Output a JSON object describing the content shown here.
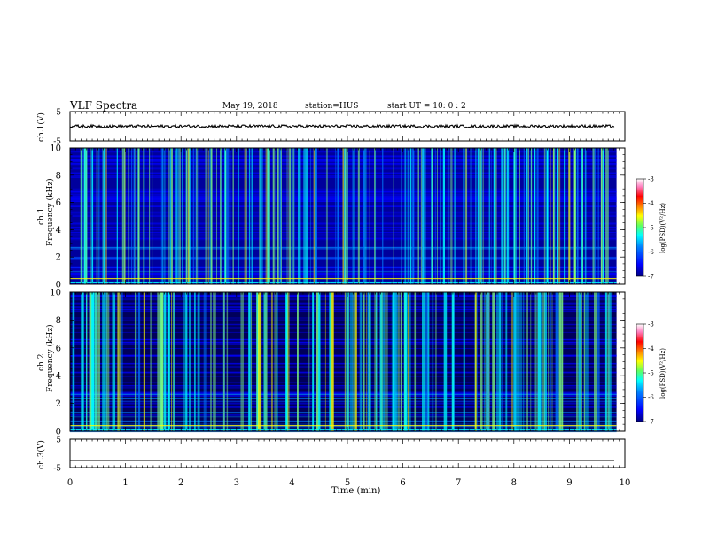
{
  "header": {
    "title": "VLF Spectra",
    "date": "May 19, 2018",
    "station": "station=HUS",
    "start": "start  UT  =   10: 0  : 2"
  },
  "colors": {
    "background": "#ffffff",
    "axes": "#000000",
    "colormap": [
      "#00007f",
      "#0000ff",
      "#0080ff",
      "#00ffff",
      "#80ff80",
      "#ffff00",
      "#ff8000",
      "#ff0000",
      "#ff80c0",
      "#ffffff"
    ]
  },
  "chart_data": [
    {
      "type": "line",
      "id": "ch1-waveform",
      "ylabel": "ch.1(V)",
      "ylim": [
        -5,
        5
      ],
      "yticks": [
        "5",
        "-5"
      ],
      "xlim": [
        0,
        10
      ],
      "description_values": {
        "offset_v": 0,
        "amplitude_v": 0.5
      }
    },
    {
      "type": "heatmap",
      "id": "ch1-spectrogram",
      "ylabel_line1": "ch.1",
      "ylabel_line2": "Frequency (kHz)",
      "ylim": [
        0,
        10
      ],
      "yticks": [
        "0",
        "2",
        "4",
        "6",
        "8",
        "10"
      ],
      "xlim": [
        0,
        9.85
      ],
      "colorbar": {
        "label": "log(PSD)(V²/Hz)",
        "range": [
          -7,
          -3
        ],
        "ticks": [
          "-3",
          "-4",
          "-5",
          "-6",
          "-7"
        ]
      }
    },
    {
      "type": "heatmap",
      "id": "ch2-spectrogram",
      "ylabel_line1": "ch.2",
      "ylabel_line2": "Frequency (kHz)",
      "ylim": [
        0,
        10
      ],
      "yticks": [
        "0",
        "2",
        "4",
        "6",
        "8",
        "10"
      ],
      "xlim": [
        0,
        9.85
      ],
      "colorbar": {
        "label": "log(PSD)(V²/Hz)",
        "range": [
          -7,
          -3
        ],
        "ticks": [
          "-3",
          "-4",
          "-5",
          "-6",
          "-7"
        ]
      }
    },
    {
      "type": "line",
      "id": "ch3-waveform",
      "ylabel": "ch.3(V)",
      "ylim": [
        -5,
        5
      ],
      "yticks": [
        "5",
        "-5"
      ],
      "xlim": [
        0,
        10
      ],
      "description_values": {
        "offset_v": -2.5,
        "amplitude_v": 0
      }
    }
  ],
  "xaxis": {
    "label": "Time  (min)",
    "ticks": [
      "0",
      "1",
      "2",
      "3",
      "4",
      "5",
      "6",
      "7",
      "8",
      "9",
      "10"
    ]
  }
}
